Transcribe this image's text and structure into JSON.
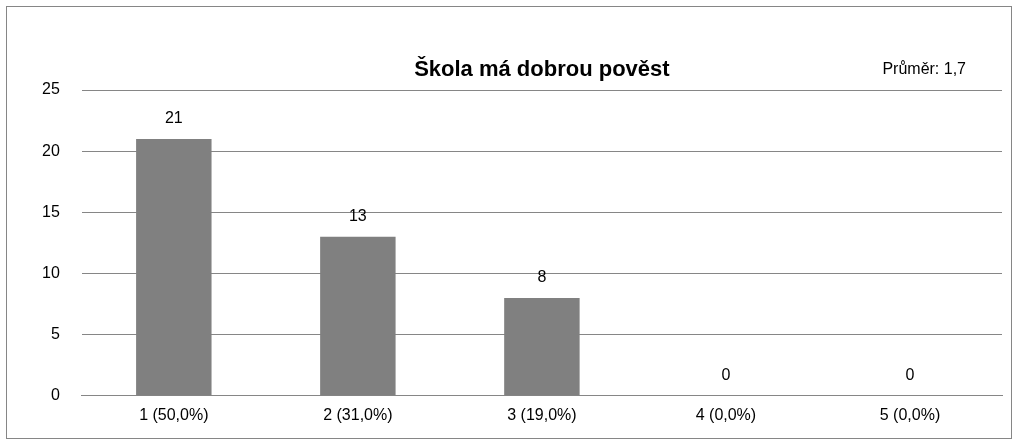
{
  "chart_data": {
    "type": "bar",
    "title": "Škola má dobrou pověst",
    "categories": [
      "1 (50,0%)",
      "2 (31,0%)",
      "3 (19,0%)",
      "4 (0,0%)",
      "5 (0,0%)"
    ],
    "values": [
      21,
      13,
      8,
      0,
      0
    ],
    "color": "#808080",
    "ylim": [
      0,
      25
    ],
    "yticks": [
      0,
      5,
      10,
      15,
      20,
      25
    ],
    "grid": "y",
    "legend": false,
    "data_labels": true,
    "annotations": [
      "Průměr: 1,7"
    ]
  }
}
